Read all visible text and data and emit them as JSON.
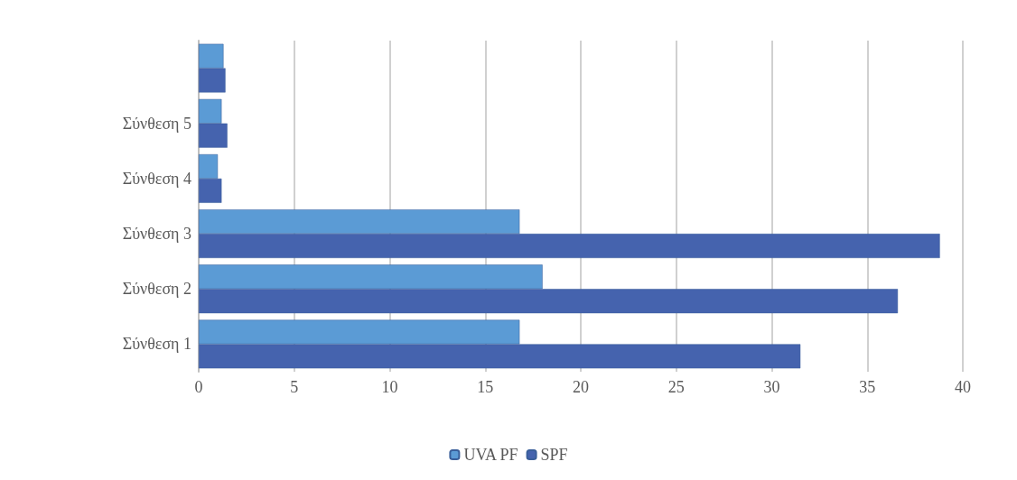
{
  "chart_data": {
    "type": "bar",
    "orientation": "horizontal",
    "categories": [
      null,
      "Σύνθεση 5",
      "Σύνθεση 4",
      "Σύνθεση 3",
      "Σύνθεση 2",
      "Σύνθεση 1"
    ],
    "series": [
      {
        "name": "UVA PF",
        "color": "#5b9bd5",
        "values": [
          1.3,
          1.2,
          1.0,
          16.8,
          18.0,
          16.8
        ]
      },
      {
        "name": "SPF",
        "color": "#4563ae",
        "values": [
          1.4,
          1.5,
          1.2,
          38.8,
          36.6,
          31.5
        ]
      }
    ],
    "xlim": [
      0,
      40
    ],
    "xticks": [
      0,
      5,
      10,
      15,
      20,
      25,
      30,
      35,
      40
    ],
    "grid": "x",
    "legend": "bottom"
  }
}
